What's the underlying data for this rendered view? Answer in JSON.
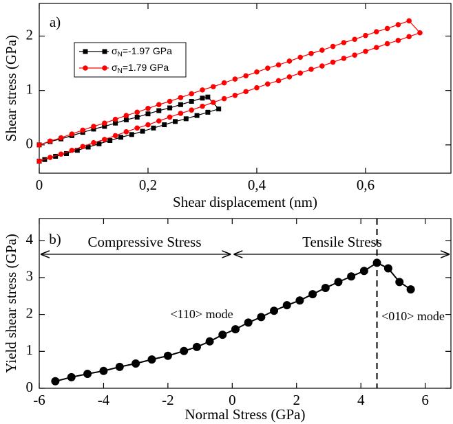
{
  "chart_data": [
    {
      "type": "line",
      "xlabel": "Shear displacement (nm)",
      "ylabel": "Shear stress (GPa)",
      "annotations": [
        "a)"
      ],
      "xlim": [
        0,
        0.757
      ],
      "ylim": [
        -0.52,
        2.6
      ],
      "xticks": [
        0,
        {
          "value": 0.2,
          "label": "0,2"
        },
        {
          "value": 0.4,
          "label": "0,4"
        },
        {
          "value": 0.6,
          "label": "0,6"
        }
      ],
      "yticks": [
        0,
        1,
        2
      ],
      "series": [
        {
          "name": "σN=-1.97 GPa",
          "color": "#000000",
          "marker": "square",
          "x": [
            0,
            0.02,
            0.04,
            0.06,
            0.08,
            0.1,
            0.12,
            0.14,
            0.16,
            0.18,
            0.2,
            0.22,
            0.24,
            0.26,
            0.28,
            0.3,
            0.31,
            0.33,
            0.31,
            0.29,
            0.27,
            0.25,
            0.23,
            0.21,
            0.19,
            0.17,
            0.15,
            0.13,
            0.11,
            0.09,
            0.07,
            0.05,
            0.03,
            0.01,
            0
          ],
          "values": [
            0,
            0.06,
            0.11,
            0.17,
            0.23,
            0.29,
            0.34,
            0.4,
            0.46,
            0.51,
            0.57,
            0.63,
            0.68,
            0.74,
            0.8,
            0.86,
            0.88,
            0.66,
            0.6,
            0.54,
            0.48,
            0.43,
            0.37,
            0.31,
            0.25,
            0.19,
            0.14,
            0.08,
            0.02,
            -0.04,
            -0.1,
            -0.16,
            -0.21,
            -0.27,
            -0.3
          ]
        },
        {
          "name": "σN=1.79 GPa",
          "color": "#ff0000",
          "marker": "circle",
          "x": [
            0,
            0.02,
            0.04,
            0.06,
            0.08,
            0.1,
            0.12,
            0.14,
            0.16,
            0.18,
            0.2,
            0.22,
            0.24,
            0.26,
            0.28,
            0.3,
            0.32,
            0.34,
            0.36,
            0.38,
            0.4,
            0.42,
            0.44,
            0.46,
            0.48,
            0.5,
            0.52,
            0.54,
            0.56,
            0.58,
            0.6,
            0.62,
            0.64,
            0.66,
            0.68,
            0.7,
            0.68,
            0.66,
            0.64,
            0.62,
            0.6,
            0.58,
            0.56,
            0.54,
            0.52,
            0.5,
            0.48,
            0.46,
            0.44,
            0.42,
            0.4,
            0.38,
            0.36,
            0.34,
            0.32,
            0.3,
            0.28,
            0.26,
            0.24,
            0.22,
            0.2,
            0.18,
            0.16,
            0.14,
            0.12,
            0.1,
            0.08,
            0.06,
            0.04,
            0.02,
            0
          ],
          "values": [
            0,
            0.07,
            0.13,
            0.2,
            0.27,
            0.34,
            0.4,
            0.47,
            0.54,
            0.6,
            0.67,
            0.74,
            0.8,
            0.87,
            0.94,
            1.01,
            1.07,
            1.14,
            1.21,
            1.27,
            1.34,
            1.41,
            1.47,
            1.54,
            1.61,
            1.68,
            1.74,
            1.81,
            1.88,
            1.94,
            2.01,
            2.08,
            2.14,
            2.21,
            2.28,
            2.06,
            1.99,
            1.92,
            1.86,
            1.79,
            1.72,
            1.65,
            1.59,
            1.52,
            1.45,
            1.39,
            1.32,
            1.25,
            1.18,
            1.12,
            1.05,
            0.98,
            0.91,
            0.85,
            0.78,
            0.71,
            0.64,
            0.58,
            0.51,
            0.44,
            0.37,
            0.31,
            0.24,
            0.17,
            0.1,
            0.04,
            -0.03,
            -0.1,
            -0.17,
            -0.23,
            -0.3
          ]
        }
      ]
    },
    {
      "type": "line",
      "xlabel": "Normal Stress (GPa)",
      "ylabel": "Yield shear stress (GPa)",
      "annotations": [
        "b)",
        "Compressive Stress",
        "Tensile Stress",
        "<110> mode",
        "<010> mode"
      ],
      "xlim": [
        -6,
        6.8
      ],
      "ylim": [
        0,
        4.6
      ],
      "xticks": [
        -6,
        -4,
        -2,
        0,
        2,
        4,
        6
      ],
      "yticks": [
        0,
        1,
        2,
        3,
        4
      ],
      "vline": 4.5,
      "series": [
        {
          "color": "#000000",
          "marker": "circle",
          "x": [
            -5.5,
            -5.0,
            -4.5,
            -4.0,
            -3.5,
            -3.0,
            -2.5,
            -2.0,
            -1.5,
            -1.1,
            -0.7,
            -0.3,
            0.1,
            0.5,
            0.9,
            1.3,
            1.7,
            2.1,
            2.5,
            2.9,
            3.3,
            3.7,
            4.1,
            4.5,
            4.85,
            5.2,
            5.55
          ],
          "values": [
            0.19,
            0.3,
            0.39,
            0.47,
            0.58,
            0.67,
            0.78,
            0.88,
            1.01,
            1.12,
            1.27,
            1.45,
            1.6,
            1.78,
            1.93,
            2.1,
            2.25,
            2.38,
            2.55,
            2.72,
            2.88,
            3.03,
            3.18,
            3.4,
            3.25,
            2.88,
            2.68
          ]
        }
      ]
    }
  ]
}
